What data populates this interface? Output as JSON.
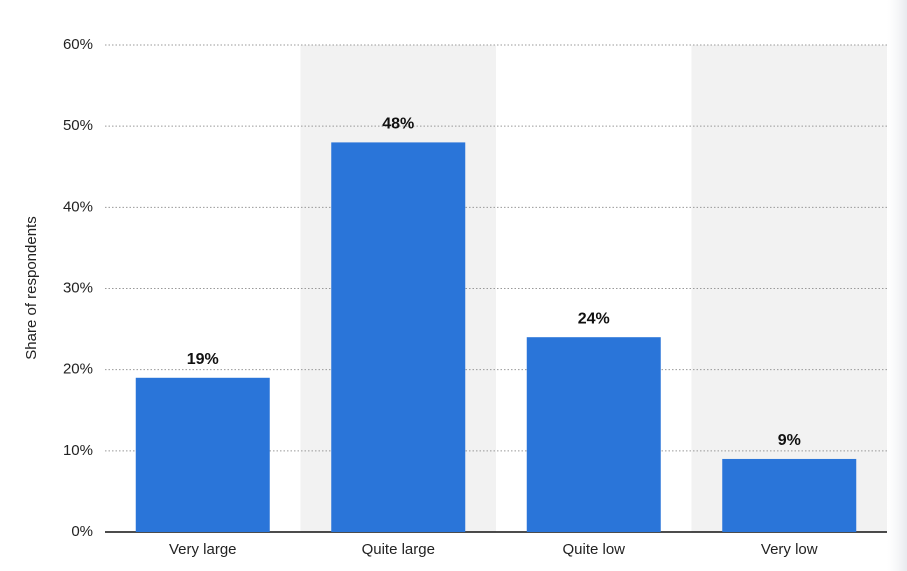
{
  "chart_data": {
    "type": "bar",
    "y_label": "Share of respondents",
    "categories": [
      "Very large",
      "Quite large",
      "Quite low",
      "Very low"
    ],
    "values": [
      19,
      48,
      24,
      9
    ],
    "value_labels": [
      "19%",
      "48%",
      "24%",
      "9%"
    ],
    "color": "#2a75d9",
    "ylim": [
      0,
      60
    ],
    "yticks": [
      {
        "value": 0,
        "label": "0%"
      },
      {
        "value": 10,
        "label": "10%"
      },
      {
        "value": 20,
        "label": "20%"
      },
      {
        "value": 30,
        "label": "30%"
      },
      {
        "value": 40,
        "label": "40%"
      },
      {
        "value": 50,
        "label": "50%"
      },
      {
        "value": 60,
        "label": "60%"
      }
    ],
    "grid": true
  }
}
